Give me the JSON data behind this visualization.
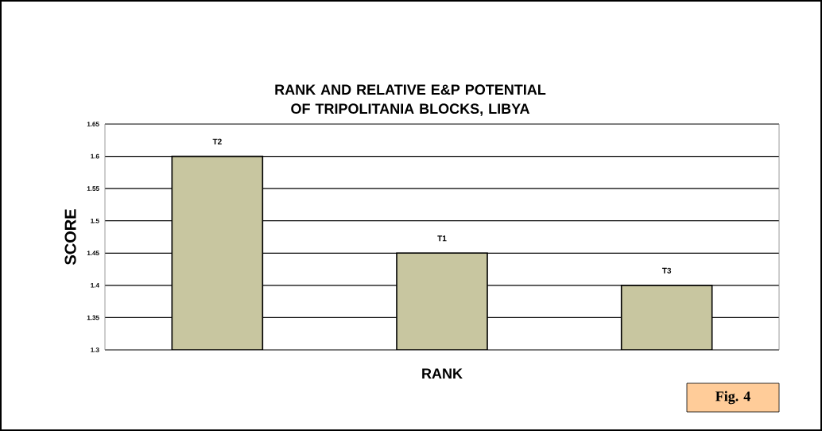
{
  "chart_data": {
    "type": "bar",
    "title": "RANK AND RELATIVE E&P POTENTIAL OF TRIPOLITANIA BLOCKS, LIBYA",
    "xlabel": "RANK",
    "ylabel": "SCORE",
    "categories": [
      null,
      null,
      null
    ],
    "values": [
      1.6,
      1.45,
      1.4
    ],
    "value_labels": [
      "T2",
      "T1",
      "T3"
    ],
    "color": "#c8c6a0",
    "ylim": [
      1.3,
      1.65
    ],
    "yticks": [
      1.3,
      1.35,
      1.4,
      1.45,
      1.5,
      1.55,
      1.6,
      1.65
    ],
    "grid": "y",
    "annotations": [
      "Fig. 4"
    ]
  }
}
